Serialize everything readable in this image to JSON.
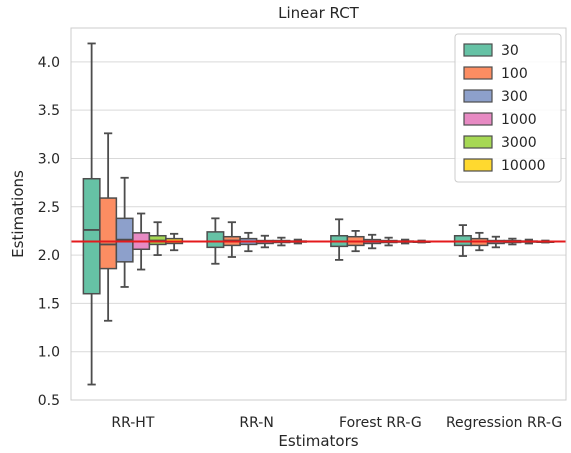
{
  "chart_data": {
    "type": "box",
    "title": "Linear RCT",
    "xlabel": "Estimators",
    "ylabel": "Estimations",
    "ylim": [
      0.5,
      4.35
    ],
    "yticks": [
      "0.5",
      "1.0",
      "1.5",
      "2.0",
      "2.5",
      "3.0",
      "3.5",
      "4.0"
    ],
    "categories": [
      "RR-HT",
      "RR-N",
      "Forest RR-G",
      "Regression RR-G"
    ],
    "reference_line": {
      "y": 2.14,
      "color": "#e41a1c"
    },
    "grid": true,
    "legend_position": "top-right",
    "series": [
      {
        "name": "30",
        "color": "#66c2a5",
        "boxes": [
          {
            "whisker_low": 0.66,
            "q1": 1.6,
            "median": 2.26,
            "q3": 2.79,
            "whisker_high": 4.19
          },
          {
            "whisker_low": 1.91,
            "q1": 2.08,
            "median": 2.14,
            "q3": 2.24,
            "whisker_high": 2.38
          },
          {
            "whisker_low": 1.95,
            "q1": 2.09,
            "median": 2.14,
            "q3": 2.2,
            "whisker_high": 2.37
          },
          {
            "whisker_low": 1.99,
            "q1": 2.1,
            "median": 2.14,
            "q3": 2.2,
            "whisker_high": 2.31
          }
        ]
      },
      {
        "name": "100",
        "color": "#fc8d62",
        "boxes": [
          {
            "whisker_low": 1.32,
            "q1": 1.86,
            "median": 2.11,
            "q3": 2.59,
            "whisker_high": 3.26
          },
          {
            "whisker_low": 1.98,
            "q1": 2.1,
            "median": 2.15,
            "q3": 2.19,
            "whisker_high": 2.34
          },
          {
            "whisker_low": 2.04,
            "q1": 2.1,
            "median": 2.14,
            "q3": 2.19,
            "whisker_high": 2.25
          },
          {
            "whisker_low": 2.05,
            "q1": 2.1,
            "median": 2.14,
            "q3": 2.17,
            "whisker_high": 2.23
          }
        ]
      },
      {
        "name": "300",
        "color": "#8da0cb",
        "boxes": [
          {
            "whisker_low": 1.67,
            "q1": 1.93,
            "median": 2.16,
            "q3": 2.38,
            "whisker_high": 2.8
          },
          {
            "whisker_low": 2.04,
            "q1": 2.11,
            "median": 2.14,
            "q3": 2.17,
            "whisker_high": 2.23
          },
          {
            "whisker_low": 2.07,
            "q1": 2.12,
            "median": 2.14,
            "q3": 2.16,
            "whisker_high": 2.21
          },
          {
            "whisker_low": 2.08,
            "q1": 2.12,
            "median": 2.14,
            "q3": 2.15,
            "whisker_high": 2.19
          }
        ]
      },
      {
        "name": "1000",
        "color": "#e78ac3",
        "boxes": [
          {
            "whisker_low": 1.85,
            "q1": 2.06,
            "median": 2.14,
            "q3": 2.23,
            "whisker_high": 2.43
          },
          {
            "whisker_low": 2.08,
            "q1": 2.12,
            "median": 2.14,
            "q3": 2.15,
            "whisker_high": 2.2
          },
          {
            "whisker_low": 2.1,
            "q1": 2.13,
            "median": 2.14,
            "q3": 2.15,
            "whisker_high": 2.18
          },
          {
            "whisker_low": 2.11,
            "q1": 2.13,
            "median": 2.14,
            "q3": 2.15,
            "whisker_high": 2.17
          }
        ]
      },
      {
        "name": "3000",
        "color": "#a6d854",
        "boxes": [
          {
            "whisker_low": 2.0,
            "q1": 2.11,
            "median": 2.15,
            "q3": 2.2,
            "whisker_high": 2.34
          },
          {
            "whisker_low": 2.1,
            "q1": 2.13,
            "median": 2.14,
            "q3": 2.15,
            "whisker_high": 2.18
          },
          {
            "whisker_low": 2.12,
            "q1": 2.135,
            "median": 2.14,
            "q3": 2.145,
            "whisker_high": 2.16
          },
          {
            "whisker_low": 2.12,
            "q1": 2.135,
            "median": 2.14,
            "q3": 2.145,
            "whisker_high": 2.16
          }
        ]
      },
      {
        "name": "10000",
        "color": "#ffd92f",
        "boxes": [
          {
            "whisker_low": 2.05,
            "q1": 2.12,
            "median": 2.14,
            "q3": 2.17,
            "whisker_high": 2.22
          },
          {
            "whisker_low": 2.12,
            "q1": 2.135,
            "median": 2.14,
            "q3": 2.145,
            "whisker_high": 2.16
          },
          {
            "whisker_low": 2.13,
            "q1": 2.137,
            "median": 2.14,
            "q3": 2.143,
            "whisker_high": 2.15
          },
          {
            "whisker_low": 2.13,
            "q1": 2.137,
            "median": 2.14,
            "q3": 2.143,
            "whisker_high": 2.15
          }
        ]
      }
    ]
  }
}
